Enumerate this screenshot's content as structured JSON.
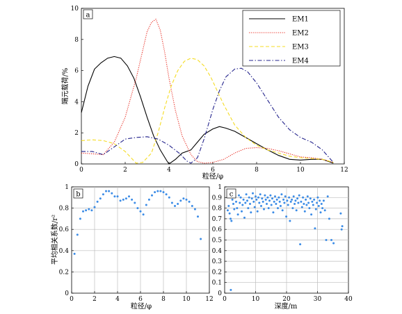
{
  "chart_data": [
    {
      "panel": "a",
      "type": "line",
      "xlabel": "粒径/φ",
      "ylabel": "端元载荷/%",
      "xlim": [
        0,
        12
      ],
      "ylim": [
        0,
        10
      ],
      "xticks": [
        0,
        2,
        4,
        6,
        8,
        10,
        12
      ],
      "yticks": [
        0,
        2,
        4,
        6,
        8,
        10
      ],
      "grid": false,
      "legend_position": "top-right",
      "series": [
        {
          "name": "EM1",
          "color": "#000000",
          "style": "solid",
          "points": [
            [
              0,
              3.3
            ],
            [
              0.3,
              5.0
            ],
            [
              0.6,
              6.1
            ],
            [
              0.9,
              6.5
            ],
            [
              1.2,
              6.8
            ],
            [
              1.5,
              6.9
            ],
            [
              1.8,
              6.8
            ],
            [
              2.1,
              6.3
            ],
            [
              2.4,
              5.5
            ],
            [
              2.7,
              4.3
            ],
            [
              3.0,
              3.0
            ],
            [
              3.3,
              1.8
            ],
            [
              3.6,
              0.9
            ],
            [
              3.9,
              0.2
            ],
            [
              4.0,
              0.0
            ],
            [
              4.3,
              0.3
            ],
            [
              4.6,
              0.7
            ],
            [
              5.0,
              0.9
            ],
            [
              5.3,
              1.4
            ],
            [
              5.6,
              1.9
            ],
            [
              6.0,
              2.25
            ],
            [
              6.3,
              2.4
            ],
            [
              6.6,
              2.3
            ],
            [
              7.0,
              2.1
            ],
            [
              7.5,
              1.7
            ],
            [
              8.0,
              1.3
            ],
            [
              8.5,
              0.9
            ],
            [
              9.0,
              0.55
            ],
            [
              9.5,
              0.3
            ],
            [
              10.0,
              0.25
            ],
            [
              10.5,
              0.3
            ],
            [
              11.0,
              0.3
            ],
            [
              11.5,
              0.05
            ]
          ]
        },
        {
          "name": "EM2",
          "color": "#e8281e",
          "style": "dotted",
          "points": [
            [
              0,
              0.7
            ],
            [
              0.5,
              0.65
            ],
            [
              1.0,
              0.6
            ],
            [
              1.5,
              1.4
            ],
            [
              2.0,
              3.0
            ],
            [
              2.5,
              5.5
            ],
            [
              2.8,
              7.3
            ],
            [
              3.0,
              8.5
            ],
            [
              3.2,
              9.1
            ],
            [
              3.4,
              9.3
            ],
            [
              3.6,
              8.6
            ],
            [
              3.8,
              7.2
            ],
            [
              4.0,
              5.5
            ],
            [
              4.3,
              3.4
            ],
            [
              4.6,
              1.8
            ],
            [
              5.0,
              0.6
            ],
            [
              5.3,
              0.15
            ],
            [
              5.6,
              0.05
            ],
            [
              6.0,
              0.1
            ],
            [
              6.5,
              0.3
            ],
            [
              7.0,
              0.7
            ],
            [
              7.5,
              1.0
            ],
            [
              8.0,
              1.05
            ],
            [
              8.5,
              1.0
            ],
            [
              9.0,
              0.85
            ],
            [
              9.5,
              0.65
            ],
            [
              10.0,
              0.45
            ],
            [
              10.5,
              0.4
            ],
            [
              11.0,
              0.3
            ],
            [
              11.5,
              0.1
            ]
          ]
        },
        {
          "name": "EM3",
          "color": "#f5dc23",
          "style": "dashed",
          "points": [
            [
              0,
              1.5
            ],
            [
              0.5,
              1.55
            ],
            [
              1.0,
              1.5
            ],
            [
              1.5,
              1.3
            ],
            [
              2.0,
              0.8
            ],
            [
              2.5,
              0.05
            ],
            [
              2.8,
              0.1
            ],
            [
              3.2,
              0.7
            ],
            [
              3.5,
              2.0
            ],
            [
              3.8,
              3.6
            ],
            [
              4.1,
              5.0
            ],
            [
              4.4,
              6.0
            ],
            [
              4.7,
              6.6
            ],
            [
              5.0,
              6.8
            ],
            [
              5.3,
              6.7
            ],
            [
              5.6,
              6.3
            ],
            [
              5.9,
              5.6
            ],
            [
              6.2,
              4.7
            ],
            [
              6.5,
              3.8
            ],
            [
              7.0,
              2.5
            ],
            [
              7.5,
              1.7
            ],
            [
              8.0,
              1.2
            ],
            [
              8.5,
              0.9
            ],
            [
              9.0,
              0.7
            ],
            [
              9.5,
              0.5
            ],
            [
              10.0,
              0.4
            ],
            [
              10.5,
              0.35
            ],
            [
              11.0,
              0.3
            ],
            [
              11.5,
              0.1
            ]
          ]
        },
        {
          "name": "EM4",
          "color": "#23238c",
          "style": "dashdot",
          "points": [
            [
              0,
              0.8
            ],
            [
              0.5,
              0.8
            ],
            [
              1.0,
              0.6
            ],
            [
              1.5,
              1.1
            ],
            [
              2.0,
              1.6
            ],
            [
              2.5,
              1.7
            ],
            [
              3.0,
              1.75
            ],
            [
              3.5,
              1.6
            ],
            [
              4.0,
              1.2
            ],
            [
              4.5,
              0.65
            ],
            [
              4.8,
              0.2
            ],
            [
              5.0,
              0.05
            ],
            [
              5.3,
              0.4
            ],
            [
              5.6,
              1.6
            ],
            [
              6.0,
              3.5
            ],
            [
              6.3,
              4.7
            ],
            [
              6.6,
              5.6
            ],
            [
              7.0,
              6.1
            ],
            [
              7.3,
              6.15
            ],
            [
              7.6,
              5.9
            ],
            [
              8.0,
              5.2
            ],
            [
              8.5,
              4.1
            ],
            [
              9.0,
              3.0
            ],
            [
              9.5,
              2.2
            ],
            [
              10.0,
              1.7
            ],
            [
              10.5,
              1.4
            ],
            [
              11.0,
              0.9
            ],
            [
              11.5,
              0.1
            ]
          ]
        }
      ]
    },
    {
      "panel": "b",
      "type": "scatter",
      "xlabel": "粒径/φ",
      "ylabel": "平均相关系数/r²",
      "xlim": [
        0,
        12
      ],
      "ylim": [
        0,
        1
      ],
      "xticks": [
        0,
        2,
        4,
        6,
        8,
        10,
        12
      ],
      "yticks": [
        0,
        0.2,
        0.4,
        0.6,
        0.8,
        1
      ],
      "grid": true,
      "color": "#3c8ce6",
      "points": [
        [
          0.25,
          0.37
        ],
        [
          0.5,
          0.55
        ],
        [
          0.75,
          0.7
        ],
        [
          1.0,
          0.77
        ],
        [
          1.25,
          0.78
        ],
        [
          1.5,
          0.79
        ],
        [
          1.75,
          0.78
        ],
        [
          2.0,
          0.81
        ],
        [
          2.25,
          0.86
        ],
        [
          2.5,
          0.89
        ],
        [
          2.75,
          0.93
        ],
        [
          3.0,
          0.96
        ],
        [
          3.25,
          0.96
        ],
        [
          3.5,
          0.94
        ],
        [
          3.75,
          0.91
        ],
        [
          4.0,
          0.91
        ],
        [
          4.25,
          0.87
        ],
        [
          4.5,
          0.88
        ],
        [
          4.75,
          0.89
        ],
        [
          5.0,
          0.91
        ],
        [
          5.25,
          0.88
        ],
        [
          5.5,
          0.85
        ],
        [
          5.75,
          0.8
        ],
        [
          6.0,
          0.77
        ],
        [
          6.25,
          0.74
        ],
        [
          6.5,
          0.83
        ],
        [
          6.75,
          0.88
        ],
        [
          7.0,
          0.92
        ],
        [
          7.25,
          0.95
        ],
        [
          7.5,
          0.96
        ],
        [
          7.75,
          0.96
        ],
        [
          8.0,
          0.95
        ],
        [
          8.25,
          0.93
        ],
        [
          8.5,
          0.9
        ],
        [
          8.75,
          0.85
        ],
        [
          9.0,
          0.82
        ],
        [
          9.25,
          0.84
        ],
        [
          9.5,
          0.87
        ],
        [
          9.75,
          0.89
        ],
        [
          10.0,
          0.88
        ],
        [
          10.25,
          0.86
        ],
        [
          10.5,
          0.82
        ],
        [
          10.75,
          0.79
        ],
        [
          11.0,
          0.72
        ],
        [
          11.25,
          0.51
        ]
      ]
    },
    {
      "panel": "c",
      "type": "scatter",
      "xlabel": "深度/m",
      "ylabel": "",
      "xlim": [
        0,
        40
      ],
      "ylim": [
        0,
        1
      ],
      "xticks": [
        0,
        10,
        20,
        30,
        40
      ],
      "yticks": [
        0,
        0.1,
        0.2,
        0.3,
        0.4,
        0.5,
        0.6,
        0.7,
        0.8,
        0.9,
        1
      ],
      "grid": true,
      "color": "#3c8ce6",
      "points": [
        [
          1.0,
          0.78
        ],
        [
          1.3,
          0.82
        ],
        [
          1.6,
          0.75
        ],
        [
          1.9,
          0.7
        ],
        [
          2.2,
          0.68
        ],
        [
          2.5,
          0.88
        ],
        [
          2.8,
          0.84
        ],
        [
          3.1,
          0.79
        ],
        [
          3.4,
          0.91
        ],
        [
          3.7,
          0.86
        ],
        [
          4.0,
          0.8
        ],
        [
          4.3,
          0.74
        ],
        [
          4.6,
          0.92
        ],
        [
          4.9,
          0.85
        ],
        [
          5.2,
          0.9
        ],
        [
          5.5,
          0.77
        ],
        [
          5.8,
          0.83
        ],
        [
          6.1,
          0.88
        ],
        [
          6.4,
          0.71
        ],
        [
          6.7,
          0.85
        ],
        [
          7.0,
          0.93
        ],
        [
          7.3,
          0.87
        ],
        [
          7.6,
          0.8
        ],
        [
          7.9,
          0.9
        ],
        [
          8.2,
          0.84
        ],
        [
          8.5,
          0.76
        ],
        [
          8.8,
          0.89
        ],
        [
          9.1,
          0.94
        ],
        [
          9.4,
          0.86
        ],
        [
          9.7,
          0.81
        ],
        [
          10.0,
          0.91
        ],
        [
          10.3,
          0.88
        ],
        [
          10.6,
          0.77
        ],
        [
          10.9,
          0.9
        ],
        [
          11.2,
          0.85
        ],
        [
          11.5,
          0.93
        ],
        [
          11.8,
          0.82
        ],
        [
          12.1,
          0.89
        ],
        [
          12.4,
          0.86
        ],
        [
          12.7,
          0.79
        ],
        [
          13.0,
          0.92
        ],
        [
          13.3,
          0.88
        ],
        [
          13.6,
          0.84
        ],
        [
          13.9,
          0.9
        ],
        [
          14.2,
          0.8
        ],
        [
          14.5,
          0.87
        ],
        [
          14.8,
          0.92
        ],
        [
          15.1,
          0.83
        ],
        [
          15.4,
          0.89
        ],
        [
          15.7,
          0.76
        ],
        [
          16.0,
          0.86
        ],
        [
          16.3,
          0.91
        ],
        [
          16.6,
          0.84
        ],
        [
          16.9,
          0.88
        ],
        [
          17.2,
          0.8
        ],
        [
          17.5,
          0.9
        ],
        [
          17.8,
          0.86
        ],
        [
          18.1,
          0.82
        ],
        [
          18.4,
          0.93
        ],
        [
          18.7,
          0.78
        ],
        [
          19.0,
          0.88
        ],
        [
          19.3,
          0.85
        ],
        [
          19.6,
          0.91
        ],
        [
          19.9,
          0.72
        ],
        [
          20.2,
          0.87
        ],
        [
          20.5,
          0.83
        ],
        [
          20.8,
          0.9
        ],
        [
          21.1,
          0.68
        ],
        [
          21.4,
          0.86
        ],
        [
          21.7,
          0.88
        ],
        [
          22.0,
          0.8
        ],
        [
          22.3,
          0.91
        ],
        [
          22.6,
          0.84
        ],
        [
          22.9,
          0.87
        ],
        [
          23.2,
          0.78
        ],
        [
          23.5,
          0.89
        ],
        [
          23.8,
          0.85
        ],
        [
          24.1,
          0.92
        ],
        [
          24.4,
          0.46
        ],
        [
          24.7,
          0.86
        ],
        [
          25.0,
          0.81
        ],
        [
          25.3,
          0.9
        ],
        [
          25.6,
          0.84
        ],
        [
          25.9,
          0.77
        ],
        [
          26.2,
          0.88
        ],
        [
          26.5,
          0.83
        ],
        [
          26.8,
          0.91
        ],
        [
          27.1,
          0.85
        ],
        [
          27.4,
          0.8
        ],
        [
          27.7,
          0.89
        ],
        [
          28.0,
          0.74
        ],
        [
          28.3,
          0.86
        ],
        [
          28.6,
          0.83
        ],
        [
          28.9,
          0.88
        ],
        [
          29.2,
          0.61
        ],
        [
          29.5,
          0.79
        ],
        [
          29.8,
          0.85
        ],
        [
          30.1,
          0.9
        ],
        [
          30.4,
          0.82
        ],
        [
          30.7,
          0.87
        ],
        [
          31.0,
          0.76
        ],
        [
          31.3,
          0.84
        ],
        [
          31.6,
          0.8
        ],
        [
          32.0,
          0.87
        ],
        [
          32.4,
          0.78
        ],
        [
          32.8,
          0.5
        ],
        [
          33.3,
          0.91
        ],
        [
          33.8,
          0.7
        ],
        [
          34.5,
          0.5
        ],
        [
          35.2,
          0.47
        ],
        [
          37.5,
          0.75
        ],
        [
          37.8,
          0.6
        ],
        [
          38.0,
          0.63
        ],
        [
          2.0,
          0.03
        ]
      ]
    }
  ],
  "panels": {
    "a": {
      "label": "a",
      "legend": [
        "EM1",
        "EM2",
        "EM3",
        "EM4"
      ]
    },
    "b": {
      "label": "b"
    },
    "c": {
      "label": "c"
    }
  }
}
